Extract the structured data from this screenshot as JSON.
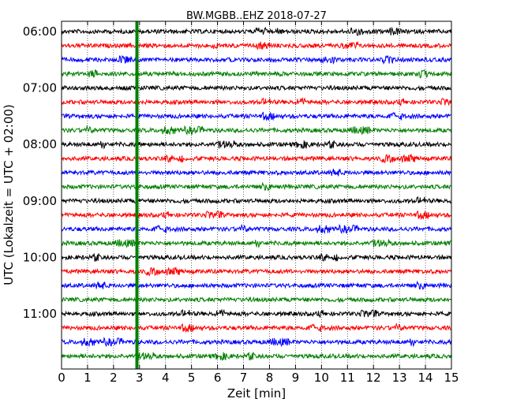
{
  "chart_data": {
    "type": "line",
    "title": "BW.MGBB..EHZ 2018-07-27",
    "xlabel": "Zeit  [min]",
    "ylabel": "UTC (Lokalzeit = UTC + 02:00)",
    "xlim": [
      0,
      15
    ],
    "x_ticks": [
      "0",
      "1",
      "2",
      "3",
      "4",
      "5",
      "6",
      "7",
      "8",
      "9",
      "10",
      "11",
      "12",
      "13",
      "14",
      "15"
    ],
    "row_count": 24,
    "row_colors": [
      "#000000",
      "#ff0000",
      "#0000ff",
      "#008000"
    ],
    "y_tick_labels": [
      {
        "row": 0,
        "label": "06:00"
      },
      {
        "row": 4,
        "label": "07:00"
      },
      {
        "row": 8,
        "label": "08:00"
      },
      {
        "row": 12,
        "label": "09:00"
      },
      {
        "row": 16,
        "label": "10:00"
      },
      {
        "row": 20,
        "label": "11:00"
      }
    ],
    "event_marker": {
      "x_min": 2.9,
      "color": "#008000"
    },
    "grid": true,
    "grid_axis": "x",
    "legend": "none"
  }
}
